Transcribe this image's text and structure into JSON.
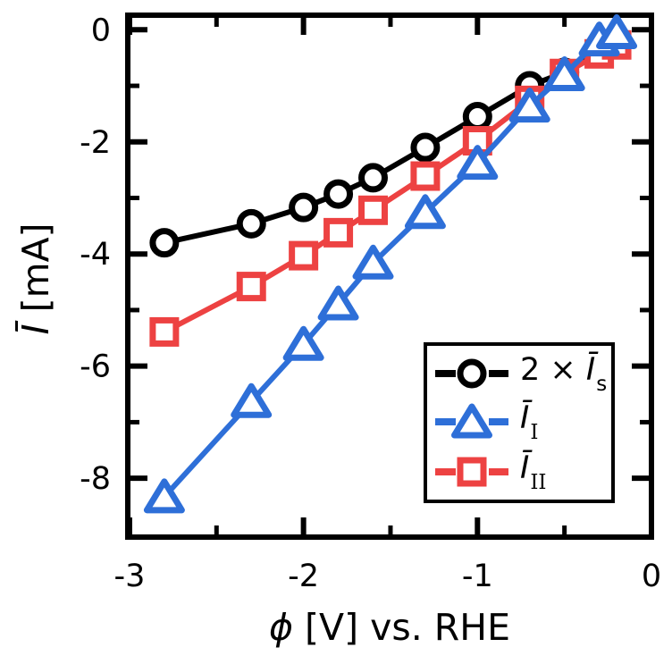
{
  "figure": {
    "background": "#ffffff",
    "ylabel": {
      "symbol": "Ī",
      "rest": " [mA]"
    },
    "xlabel": {
      "symbol": "ϕ",
      "rest": " [V] vs. RHE"
    }
  },
  "chart_data": {
    "type": "line",
    "title": "",
    "xlabel": "ϕ [V] vs. RHE",
    "ylabel": "Ī [mA]",
    "x": [
      -2.8,
      -2.3,
      -2.0,
      -1.8,
      -1.6,
      -1.3,
      -1.0,
      -0.7,
      -0.5,
      -0.3,
      -0.2
    ],
    "series": [
      {
        "name": "2 × Ī_s",
        "marker": "circle",
        "color": "#000000",
        "values": [
          -3.8,
          -3.46,
          -3.17,
          -2.93,
          -2.64,
          -2.1,
          -1.55,
          -1.0,
          -0.76,
          -0.35,
          -0.24
        ]
      },
      {
        "name": "Ī_I",
        "marker": "triangle",
        "color": "#2E6FD8",
        "values": [
          -8.33,
          -6.63,
          -5.61,
          -4.89,
          -4.16,
          -3.26,
          -2.38,
          -1.36,
          -0.8,
          -0.18,
          -0.05
        ]
      },
      {
        "name": "Ī_II",
        "marker": "square",
        "color": "#ED4242",
        "values": [
          -5.39,
          -4.58,
          -4.03,
          -3.62,
          -3.22,
          -2.61,
          -1.98,
          -1.26,
          -0.78,
          -0.43,
          -0.27
        ]
      }
    ],
    "draw_order": [
      0,
      2,
      1
    ],
    "xlim": [
      -3.01,
      0
    ],
    "ylim": [
      -9.05,
      0.26
    ],
    "x_ticks": {
      "major": [
        -3,
        -2,
        -1,
        0
      ],
      "minor": [
        -2.5,
        -1.5,
        -0.5
      ],
      "labels": [
        "-3",
        "-2",
        "-1",
        "0"
      ]
    },
    "y_ticks": {
      "major": [
        0,
        -2,
        -4,
        -6,
        -8
      ],
      "minor": [
        -1,
        -3,
        -5,
        -7
      ],
      "labels": [
        "0",
        "-2",
        "-4",
        "-6",
        "-8"
      ]
    },
    "grid": false,
    "legend": {
      "position": "lower right",
      "entries": [
        {
          "prefix": "2 × ",
          "base": "Ī",
          "sub": "s"
        },
        {
          "prefix": "",
          "base": "Ī",
          "sub": "I"
        },
        {
          "prefix": "",
          "base": "Ī",
          "sub": "II"
        }
      ]
    }
  }
}
